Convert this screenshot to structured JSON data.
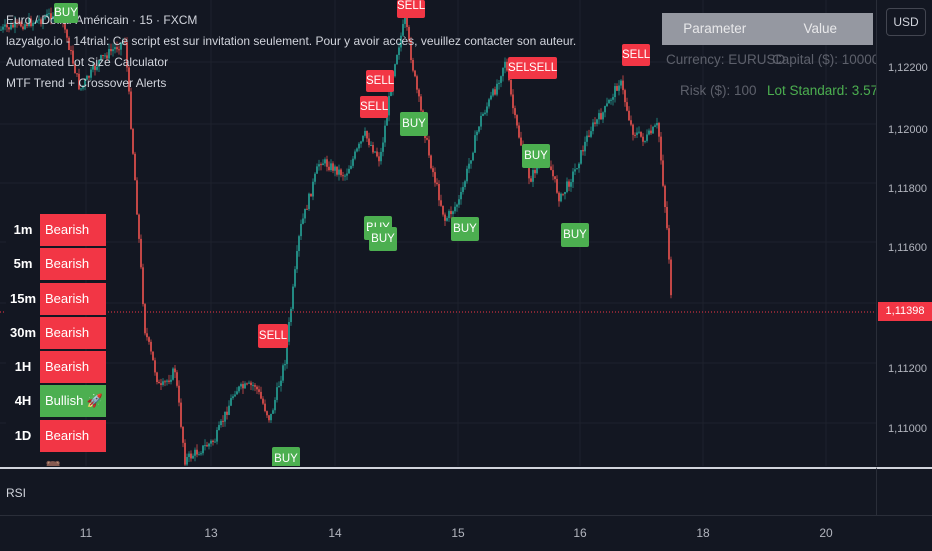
{
  "legend": {
    "symbol": "Euro / Dollar Américain · 15 · FXCM",
    "line2": "lazyalgo.io - 14trial: Ce script est sur invitation seulement. Pour y avoir accès, veuillez contacter son auteur.",
    "line3": "Automated Lot Size Calculator",
    "line4": "MTF Trend + Crossover Alerts"
  },
  "price_axis": {
    "currency_button": "USD",
    "ticks": [
      "1,12200",
      "1,12000",
      "1,11800",
      "1,11600",
      "1,11200",
      "1,11000"
    ],
    "current_price": "1,11398"
  },
  "time_axis": {
    "ticks": [
      "11",
      "13",
      "14",
      "15",
      "16",
      "18",
      "20"
    ]
  },
  "rsi": {
    "label": "RSI"
  },
  "mtf_table": {
    "rows": [
      {
        "tf": "1m",
        "status": "Bearish 🐻",
        "trend": "bear"
      },
      {
        "tf": "5m",
        "status": "Bearish 🐻",
        "trend": "bear"
      },
      {
        "tf": "15m",
        "status": "Bearish 🐻",
        "trend": "bear"
      },
      {
        "tf": "30m",
        "status": "Bearish 🐻",
        "trend": "bear"
      },
      {
        "tf": "1H",
        "status": "Bearish 🐻",
        "trend": "bear"
      },
      {
        "tf": "4H",
        "status": "Bullish 🚀",
        "trend": "bull"
      },
      {
        "tf": "1D",
        "status": "Bearish 🐻",
        "trend": "bear"
      }
    ]
  },
  "lot_table": {
    "header_param": "Parameter",
    "header_value": "Value",
    "currency": "Currency: EURUSD",
    "capital": "Capital ($): 10000",
    "risk": "Risk ($): 100",
    "lot": "Lot Standard: 3.571"
  },
  "signals": {
    "sell_label": "SELL",
    "buy_label": "BUY"
  },
  "colors": {
    "bull": "#4caf50",
    "bear": "#f23645",
    "background": "#131722",
    "grid": "#1e222d"
  }
}
